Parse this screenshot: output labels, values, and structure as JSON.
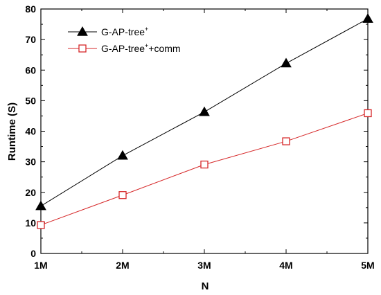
{
  "chart_data": {
    "type": "line",
    "title": "",
    "xlabel": "N",
    "ylabel": "Runtime (S)",
    "categories": [
      "1M",
      "2M",
      "3M",
      "4M",
      "5M"
    ],
    "x": [
      1,
      2,
      3,
      4,
      5
    ],
    "xlim": [
      1,
      5
    ],
    "ylim": [
      0,
      80
    ],
    "yticks": [
      0,
      10,
      20,
      30,
      40,
      50,
      60,
      70,
      80
    ],
    "grid": false,
    "legend_position": "top-left",
    "series": [
      {
        "name_main": "G-AP-tree",
        "name_sup": "+",
        "name_suffix": "",
        "values": [
          15.5,
          32,
          46.3,
          62.2,
          76.8
        ],
        "color": "#000000",
        "marker": "filled-triangle"
      },
      {
        "name_main": "G-AP-tree",
        "name_sup": "+",
        "name_suffix": "+comm",
        "values": [
          9.3,
          19.1,
          29.1,
          36.7,
          45.9
        ],
        "color": "#d62728",
        "marker": "open-square"
      }
    ]
  }
}
